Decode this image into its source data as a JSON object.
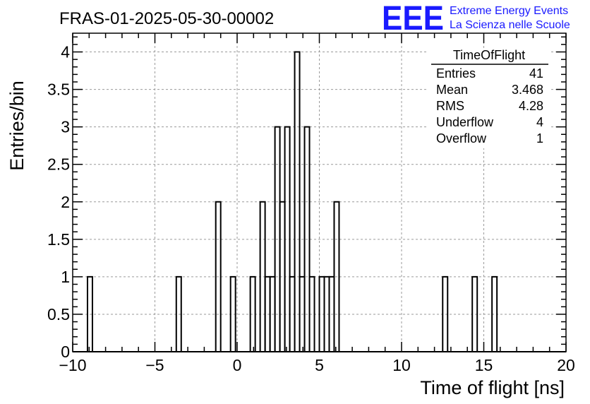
{
  "chart_data": {
    "type": "histogram",
    "title": "FRAS-01-2025-05-30-00002",
    "xlabel": "Time of flight [ns]",
    "ylabel": "Entries/bin",
    "xlim": [
      -10,
      20
    ],
    "ylim": [
      0,
      4.25
    ],
    "xticks": [
      "−10",
      "−5",
      "0",
      "5",
      "10",
      "15",
      "20"
    ],
    "xtick_values": [
      -10,
      -5,
      0,
      5,
      10,
      15,
      20
    ],
    "yticks": [
      "0",
      "0.5",
      "1",
      "1.5",
      "2",
      "2.5",
      "3",
      "3.5",
      "4"
    ],
    "ytick_values": [
      0,
      0.5,
      1,
      1.5,
      2,
      2.5,
      3,
      3.5,
      4
    ],
    "grid": true,
    "bin_width": 0.3,
    "bins": [
      {
        "x": -9.1,
        "value": 1
      },
      {
        "x": -3.7,
        "value": 1
      },
      {
        "x": -1.3,
        "value": 2
      },
      {
        "x": -0.4,
        "value": 1
      },
      {
        "x": 0.8,
        "value": 1
      },
      {
        "x": 1.4,
        "value": 2
      },
      {
        "x": 1.7,
        "value": 1
      },
      {
        "x": 2.0,
        "value": 1
      },
      {
        "x": 2.3,
        "value": 3
      },
      {
        "x": 2.6,
        "value": 2
      },
      {
        "x": 2.9,
        "value": 3
      },
      {
        "x": 3.2,
        "value": 1
      },
      {
        "x": 3.5,
        "value": 4
      },
      {
        "x": 3.8,
        "value": 1
      },
      {
        "x": 4.1,
        "value": 3
      },
      {
        "x": 4.4,
        "value": 1
      },
      {
        "x": 5.0,
        "value": 1
      },
      {
        "x": 5.3,
        "value": 1
      },
      {
        "x": 5.6,
        "value": 1
      },
      {
        "x": 5.9,
        "value": 2
      },
      {
        "x": 12.5,
        "value": 1
      },
      {
        "x": 14.3,
        "value": 1
      },
      {
        "x": 15.5,
        "value": 1
      }
    ],
    "stats_box": {
      "name": "TimeOfFlight",
      "rows": [
        {
          "label": "Entries",
          "value": "41"
        },
        {
          "label": "Mean",
          "value": "3.468"
        },
        {
          "label": "RMS",
          "value": "4.28"
        },
        {
          "label": "Underflow",
          "value": "4"
        },
        {
          "label": "Overflow",
          "value": "1"
        }
      ]
    }
  },
  "logo": {
    "mark": "EEE",
    "line1": "Extreme Energy Events",
    "line2": "La Scienza nelle Scuole",
    "color": "#1a1aff"
  },
  "colors": {
    "histogram": "#000000",
    "grid": "#9a9a9a",
    "frame": "#000000"
  }
}
